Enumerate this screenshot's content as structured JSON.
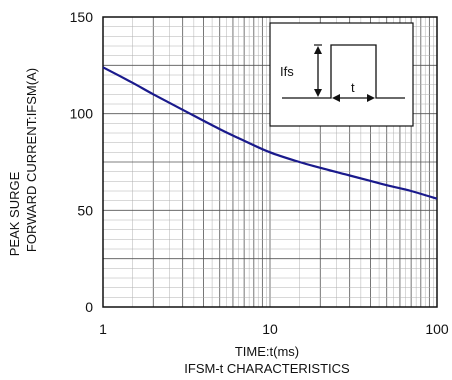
{
  "chart_data": {
    "type": "line",
    "caption": "IFSM-t CHARACTERISTICS",
    "xlabel": "TIME:t(ms)",
    "ylabel_lines": [
      "PEAK SURGE",
      "FORWARD CURRENT:IFSM(A)"
    ],
    "x_scale": "log",
    "xlim": [
      1,
      100
    ],
    "ylim": [
      0,
      150
    ],
    "x_ticks": [
      1,
      10,
      100
    ],
    "y_ticks": [
      0,
      50,
      100,
      150
    ],
    "grid": true,
    "series": [
      {
        "x": [
          1,
          1.5,
          2,
          3,
          5,
          7,
          10,
          15,
          20,
          30,
          50,
          70,
          100
        ],
        "y": [
          124,
          116,
          110,
          102,
          92,
          86,
          80,
          75,
          72,
          68,
          63,
          60,
          56
        ]
      }
    ],
    "inset": {
      "amplitude_label": "Ifs",
      "duration_label": "t"
    },
    "colors": {
      "curve": "#1a1a8c",
      "grid": "#b0b0b0",
      "axis": "#111111"
    }
  }
}
